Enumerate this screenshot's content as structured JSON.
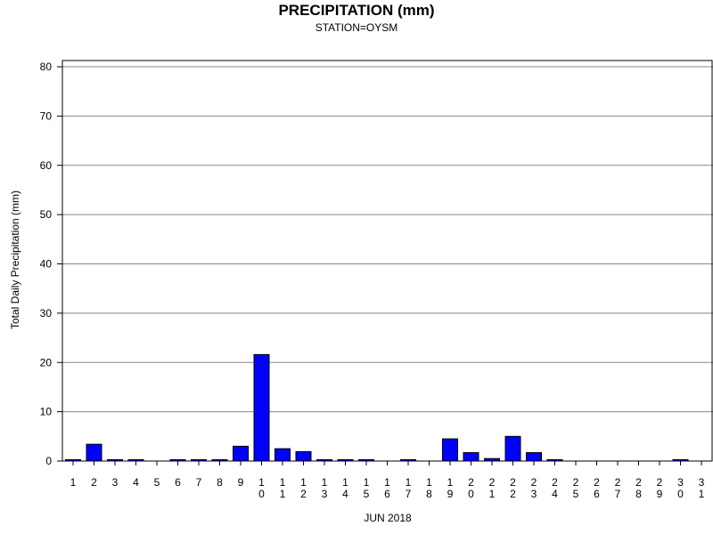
{
  "chart_data": {
    "type": "bar",
    "title": "PRECIPITATION (mm)",
    "subtitle": "STATION=OYSM",
    "xlabel": "JUN 2018",
    "ylabel": "Total Daily Precipitation (mm)",
    "ylim": [
      0,
      80
    ],
    "yticks": [
      0,
      10,
      20,
      30,
      40,
      50,
      60,
      70,
      80
    ],
    "grid": true,
    "bar_color": "#0000ff",
    "categories": [
      "1",
      "2",
      "3",
      "4",
      "5",
      "6",
      "7",
      "8",
      "9",
      "10",
      "11",
      "12",
      "13",
      "14",
      "15",
      "16",
      "17",
      "18",
      "19",
      "20",
      "21",
      "22",
      "23",
      "24",
      "25",
      "26",
      "27",
      "28",
      "29",
      "30",
      "31"
    ],
    "values": [
      0.1,
      3.4,
      0.1,
      0.1,
      null,
      0.1,
      0.1,
      0.1,
      3.0,
      21.6,
      2.5,
      1.9,
      0.1,
      0.1,
      0.1,
      null,
      0.1,
      null,
      4.5,
      1.7,
      0.5,
      5.0,
      1.7,
      0.1,
      null,
      null,
      null,
      null,
      null,
      0.1,
      null
    ]
  }
}
